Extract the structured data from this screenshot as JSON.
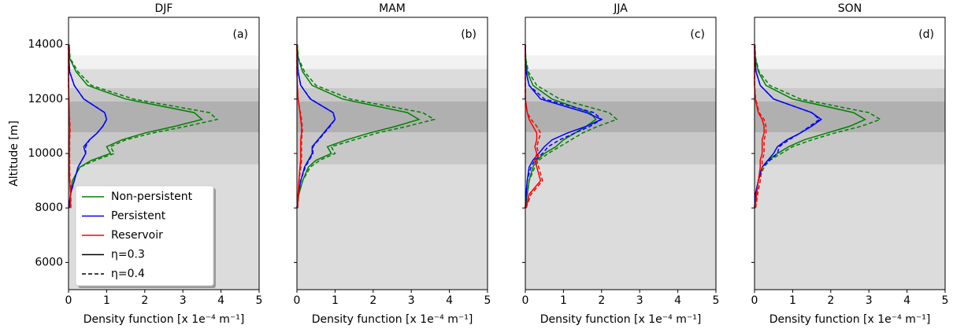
{
  "chart_data": [
    {
      "type": "line",
      "title": "DJF",
      "panel_label": "(a)",
      "xlabel": "Density function [x 1e⁻⁴ m⁻¹]",
      "ylabel": "Altitude [m]",
      "xlim": [
        0,
        5
      ],
      "xticks": [
        0,
        1,
        2,
        3,
        4,
        5
      ],
      "ylim": [
        5000,
        15000
      ],
      "yticks": [
        6000,
        8000,
        10000,
        12000,
        14000
      ],
      "bands": [
        {
          "from": 5000,
          "to": 13600,
          "color": "#f2f2f2"
        },
        {
          "from": 5000,
          "to": 13100,
          "color": "#dcdcdc"
        },
        {
          "from": 9600,
          "to": 12400,
          "color": "#c8c8c8"
        },
        {
          "from": 10780,
          "to": 11910,
          "color": "#b0b0b0"
        }
      ],
      "y": [
        8000,
        8500,
        9000,
        9500,
        9750,
        10000,
        10250,
        10500,
        10750,
        11000,
        11250,
        11500,
        12000,
        12500,
        13000,
        13500,
        14000
      ],
      "series": [
        {
          "color": "green",
          "dash": "solid",
          "values": [
            0.02,
            0.05,
            0.1,
            0.3,
            0.6,
            1.1,
            1.0,
            1.4,
            2.0,
            2.8,
            3.5,
            3.3,
            1.5,
            0.5,
            0.2,
            0.03,
            0.02
          ]
        },
        {
          "color": "green",
          "dash": "dashed",
          "values": [
            0.02,
            0.05,
            0.1,
            0.3,
            0.7,
            1.2,
            1.1,
            1.5,
            2.2,
            3.1,
            3.9,
            3.7,
            1.7,
            0.6,
            0.25,
            0.04,
            0.02
          ]
        },
        {
          "color": "blue",
          "dash": "solid",
          "values": [
            0.01,
            0.05,
            0.15,
            0.25,
            0.35,
            0.45,
            0.4,
            0.55,
            0.75,
            0.9,
            1.0,
            0.95,
            0.4,
            0.15,
            0.03,
            0.01,
            0
          ]
        },
        {
          "color": "blue",
          "dash": "dashed",
          "values": [
            0.01,
            0.05,
            0.15,
            0.25,
            0.35,
            0.45,
            0.45,
            0.55,
            0.75,
            0.9,
            1.0,
            0.95,
            0.4,
            0.15,
            0.03,
            0.01,
            0
          ]
        },
        {
          "color": "red",
          "dash": "solid",
          "values": [
            0.05,
            0.05,
            0.03,
            0.02,
            0.02,
            0.02,
            0.02,
            0.02,
            0.03,
            0.03,
            0.02,
            0.02,
            0.01,
            0,
            0,
            0,
            0
          ]
        },
        {
          "color": "red",
          "dash": "dashed",
          "values": [
            0.06,
            0.06,
            0.04,
            0.03,
            0.03,
            0.03,
            0.03,
            0.03,
            0.04,
            0.04,
            0.03,
            0.02,
            0.01,
            0,
            0,
            0,
            0
          ]
        }
      ],
      "legend": [
        {
          "label": "Non-persistent",
          "color": "green",
          "dash": "solid"
        },
        {
          "label": "Persistent",
          "color": "blue",
          "dash": "solid"
        },
        {
          "label": "Reservoir",
          "color": "red",
          "dash": "solid"
        },
        {
          "label": "η=0.3",
          "color": "black",
          "dash": "solid"
        },
        {
          "label": "η=0.4",
          "color": "black",
          "dash": "dashed"
        }
      ]
    },
    {
      "type": "line",
      "title": "MAM",
      "panel_label": "(b)",
      "xlabel": "Density function [x 1e⁻⁴ m⁻¹]",
      "xlim": [
        0,
        5
      ],
      "xticks": [
        0,
        1,
        2,
        3,
        4,
        5
      ],
      "ylim": [
        5000,
        15000
      ],
      "yticks": [
        6000,
        8000,
        10000,
        12000,
        14000
      ],
      "bands": [
        {
          "from": 5000,
          "to": 13600,
          "color": "#f2f2f2"
        },
        {
          "from": 5000,
          "to": 13100,
          "color": "#dcdcdc"
        },
        {
          "from": 9600,
          "to": 12400,
          "color": "#c8c8c8"
        },
        {
          "from": 10780,
          "to": 11910,
          "color": "#b0b0b0"
        }
      ],
      "y": [
        8000,
        8500,
        9000,
        9500,
        9750,
        10000,
        10250,
        10500,
        10750,
        11000,
        11250,
        11500,
        12000,
        12500,
        13000,
        13500,
        14000
      ],
      "series": [
        {
          "color": "green",
          "dash": "solid",
          "values": [
            0.01,
            0.05,
            0.15,
            0.3,
            0.5,
            0.9,
            0.8,
            1.3,
            1.9,
            2.6,
            3.2,
            2.9,
            1.2,
            0.4,
            0.15,
            0.03,
            0.01
          ]
        },
        {
          "color": "green",
          "dash": "dashed",
          "values": [
            0.01,
            0.05,
            0.15,
            0.35,
            0.6,
            1.0,
            0.9,
            1.5,
            2.1,
            2.9,
            3.6,
            3.3,
            1.4,
            0.5,
            0.2,
            0.04,
            0.01
          ]
        },
        {
          "color": "blue",
          "dash": "solid",
          "values": [
            0,
            0.03,
            0.1,
            0.2,
            0.3,
            0.4,
            0.4,
            0.55,
            0.7,
            0.85,
            1.0,
            0.95,
            0.35,
            0.1,
            0.03,
            0.01,
            0
          ]
        },
        {
          "color": "blue",
          "dash": "dashed",
          "values": [
            0,
            0.03,
            0.1,
            0.22,
            0.32,
            0.42,
            0.42,
            0.57,
            0.72,
            0.87,
            1.0,
            0.95,
            0.36,
            0.1,
            0.03,
            0.01,
            0
          ]
        },
        {
          "color": "red",
          "dash": "solid",
          "values": [
            0.02,
            0.03,
            0.05,
            0.08,
            0.1,
            0.1,
            0.1,
            0.1,
            0.12,
            0.12,
            0.1,
            0.08,
            0.03,
            0.01,
            0,
            0,
            0
          ]
        },
        {
          "color": "red",
          "dash": "dashed",
          "values": [
            0.02,
            0.04,
            0.06,
            0.1,
            0.12,
            0.12,
            0.12,
            0.12,
            0.14,
            0.14,
            0.12,
            0.09,
            0.03,
            0.01,
            0,
            0,
            0
          ]
        }
      ]
    },
    {
      "type": "line",
      "title": "JJA",
      "panel_label": "(c)",
      "xlabel": "Density function [x 1e⁻⁴ m⁻¹]",
      "xlim": [
        0,
        5
      ],
      "xticks": [
        0,
        1,
        2,
        3,
        4,
        5
      ],
      "ylim": [
        5000,
        15000
      ],
      "yticks": [
        6000,
        8000,
        10000,
        12000,
        14000
      ],
      "bands": [
        {
          "from": 5000,
          "to": 13600,
          "color": "#f2f2f2"
        },
        {
          "from": 5000,
          "to": 13100,
          "color": "#dcdcdc"
        },
        {
          "from": 9600,
          "to": 12400,
          "color": "#c8c8c8"
        },
        {
          "from": 10780,
          "to": 11910,
          "color": "#b0b0b0"
        }
      ],
      "y": [
        8000,
        8500,
        9000,
        9500,
        9750,
        10000,
        10250,
        10500,
        10750,
        11000,
        11250,
        11500,
        12000,
        12500,
        13000,
        13500,
        14000
      ],
      "series": [
        {
          "color": "green",
          "dash": "solid",
          "values": [
            0,
            0.05,
            0.1,
            0.2,
            0.3,
            0.5,
            0.8,
            1.0,
            1.3,
            1.6,
            1.85,
            1.7,
            0.7,
            0.2,
            0.05,
            0.01,
            0
          ]
        },
        {
          "color": "green",
          "dash": "dashed",
          "values": [
            0,
            0.05,
            0.1,
            0.25,
            0.35,
            0.6,
            0.9,
            1.2,
            1.5,
            1.9,
            2.4,
            2.2,
            0.9,
            0.3,
            0.08,
            0.01,
            0
          ]
        },
        {
          "color": "blue",
          "dash": "solid",
          "values": [
            0,
            0.02,
            0.05,
            0.1,
            0.2,
            0.35,
            0.5,
            0.7,
            1.1,
            1.6,
            2.0,
            1.6,
            0.4,
            0.1,
            0.02,
            0,
            0
          ]
        },
        {
          "color": "blue",
          "dash": "dashed",
          "values": [
            0,
            0.02,
            0.05,
            0.15,
            0.25,
            0.45,
            0.6,
            0.9,
            1.3,
            1.7,
            2.0,
            1.8,
            0.5,
            0.1,
            0.02,
            0,
            0
          ]
        },
        {
          "color": "red",
          "dash": "solid",
          "values": [
            0.02,
            0.1,
            0.4,
            0.3,
            0.25,
            0.3,
            0.25,
            0.3,
            0.3,
            0.2,
            0.1,
            0.05,
            0,
            0,
            0,
            0,
            0
          ]
        },
        {
          "color": "red",
          "dash": "dashed",
          "values": [
            0.02,
            0.15,
            0.45,
            0.35,
            0.3,
            0.35,
            0.3,
            0.35,
            0.4,
            0.3,
            0.15,
            0.05,
            0,
            0,
            0,
            0,
            0
          ]
        }
      ]
    },
    {
      "type": "line",
      "title": "SON",
      "panel_label": "(d)",
      "xlabel": "Density function [x 1e⁻⁴ m⁻¹]",
      "xlim": [
        0,
        5
      ],
      "xticks": [
        0,
        1,
        2,
        3,
        4,
        5
      ],
      "ylim": [
        5000,
        15000
      ],
      "yticks": [
        6000,
        8000,
        10000,
        12000,
        14000
      ],
      "bands": [
        {
          "from": 5000,
          "to": 13600,
          "color": "#f2f2f2"
        },
        {
          "from": 5000,
          "to": 13100,
          "color": "#dcdcdc"
        },
        {
          "from": 9600,
          "to": 12400,
          "color": "#c8c8c8"
        },
        {
          "from": 10780,
          "to": 11910,
          "color": "#b0b0b0"
        }
      ],
      "y": [
        8000,
        8500,
        9000,
        9500,
        9750,
        10000,
        10250,
        10500,
        10750,
        11000,
        11250,
        11500,
        12000,
        12500,
        13000,
        13500,
        14000
      ],
      "series": [
        {
          "color": "green",
          "dash": "solid",
          "values": [
            0.01,
            0.05,
            0.1,
            0.2,
            0.35,
            0.6,
            0.9,
            1.3,
            1.9,
            2.5,
            2.9,
            2.6,
            1.0,
            0.3,
            0.1,
            0.02,
            0.01
          ]
        },
        {
          "color": "green",
          "dash": "dashed",
          "values": [
            0.01,
            0.05,
            0.1,
            0.25,
            0.4,
            0.7,
            1.0,
            1.5,
            2.1,
            2.8,
            3.3,
            3.0,
            1.2,
            0.4,
            0.12,
            0.03,
            0.01
          ]
        },
        {
          "color": "blue",
          "dash": "solid",
          "values": [
            0,
            0.02,
            0.1,
            0.2,
            0.35,
            0.5,
            0.6,
            0.85,
            1.2,
            1.5,
            1.75,
            1.5,
            0.5,
            0.15,
            0.04,
            0.01,
            0
          ]
        },
        {
          "color": "blue",
          "dash": "dashed",
          "values": [
            0,
            0.02,
            0.1,
            0.2,
            0.4,
            0.6,
            0.65,
            0.9,
            1.2,
            1.45,
            1.7,
            1.5,
            0.5,
            0.15,
            0.04,
            0.01,
            0
          ]
        },
        {
          "color": "red",
          "dash": "solid",
          "values": [
            0.02,
            0.05,
            0.1,
            0.15,
            0.15,
            0.2,
            0.2,
            0.2,
            0.25,
            0.25,
            0.2,
            0.1,
            0.02,
            0,
            0,
            0,
            0
          ]
        },
        {
          "color": "red",
          "dash": "dashed",
          "values": [
            0.03,
            0.08,
            0.15,
            0.2,
            0.2,
            0.25,
            0.25,
            0.25,
            0.3,
            0.3,
            0.25,
            0.12,
            0.03,
            0,
            0,
            0,
            0
          ]
        }
      ]
    }
  ]
}
